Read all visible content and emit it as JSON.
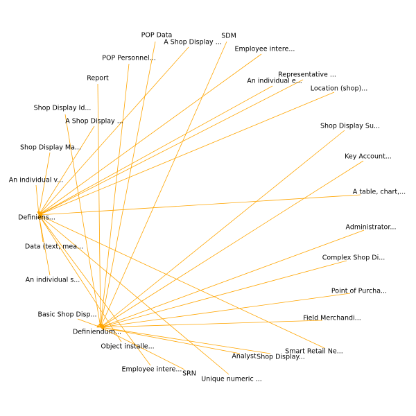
{
  "colors": {
    "edge": "#ffa500",
    "text": "#000000",
    "background": "#ffffff"
  },
  "hubs": [
    {
      "id": "definiens",
      "label": "Definiens..."
    },
    {
      "id": "definiendum",
      "label": "Definiendum..."
    }
  ],
  "nodes": [
    {
      "id": "pop-data",
      "label": "POP Data",
      "target": "definiendum"
    },
    {
      "id": "sdm",
      "label": "SDM",
      "target": "definiendum"
    },
    {
      "id": "shop-display-a1",
      "label": "A Shop Display ...",
      "target": "definiens"
    },
    {
      "id": "employee-intere-1",
      "label": "Employee intere...",
      "target": "definiens"
    },
    {
      "id": "pop-personnel",
      "label": "POP Personnel...",
      "target": "definiendum"
    },
    {
      "id": "representative",
      "label": "Representative ...",
      "target": "definiens"
    },
    {
      "id": "individual-e",
      "label": "An individual e...",
      "target": "definiens"
    },
    {
      "id": "report",
      "label": "Report",
      "target": "definiendum"
    },
    {
      "id": "location-shop",
      "label": "Location (shop)...",
      "target": "definiens"
    },
    {
      "id": "shop-display-id",
      "label": "Shop Display Id...",
      "target": "definiendum"
    },
    {
      "id": "shop-display-a2",
      "label": "A Shop Display ...",
      "target": "definiens"
    },
    {
      "id": "shop-display-su",
      "label": "Shop Display Su...",
      "target": "definiendum"
    },
    {
      "id": "shop-display-ma",
      "label": "Shop Display Ma...",
      "target": "definiens"
    },
    {
      "id": "key-account",
      "label": "Key Account...",
      "target": "definiendum"
    },
    {
      "id": "individual-v",
      "label": "An individual v...",
      "target": "definiens"
    },
    {
      "id": "table-chart",
      "label": "A table, chart,...",
      "target": "definiens"
    },
    {
      "id": "administrator",
      "label": "Administrator...",
      "target": "definiendum"
    },
    {
      "id": "data-text",
      "label": "Data (text, mea...",
      "target": "definiens"
    },
    {
      "id": "complex-shop",
      "label": "Complex Shop Di...",
      "target": "definiendum"
    },
    {
      "id": "individual-s",
      "label": "An individual s...",
      "target": "definiens"
    },
    {
      "id": "point-of-purcha",
      "label": "Point of Purcha...",
      "target": "definiendum"
    },
    {
      "id": "basic-shop",
      "label": "Basic Shop Disp...",
      "target": "definiendum"
    },
    {
      "id": "field-merchandi",
      "label": "Field Merchandi...",
      "target": "definiendum"
    },
    {
      "id": "object-installe",
      "label": "Object installe...",
      "target": "definiens"
    },
    {
      "id": "smart-retail",
      "label": "Smart Retail Ne...",
      "target": "definiens"
    },
    {
      "id": "analyst",
      "label": "Analyst",
      "target": "definiendum"
    },
    {
      "id": "shop-display-b",
      "label": "Shop Display...",
      "target": "definiendum"
    },
    {
      "id": "employee-intere-2",
      "label": "Employee intere...",
      "target": "definiens"
    },
    {
      "id": "srn",
      "label": "SRN",
      "target": "definiendum"
    },
    {
      "id": "unique-numeric",
      "label": "Unique numeric ...",
      "target": "definiens"
    }
  ]
}
